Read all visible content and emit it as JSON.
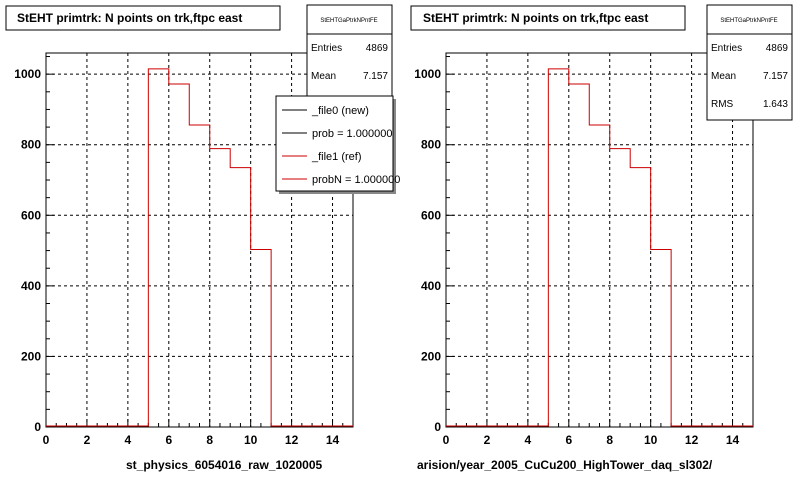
{
  "chart_data": [
    {
      "type": "histogram",
      "title": "StEHT primtrk: N points on trk,ftpc east",
      "xlabel": "st_physics_6054016_raw_1020005",
      "xlim": [
        0,
        15
      ],
      "ylim": [
        0,
        1060
      ],
      "xticks": [
        0,
        2,
        4,
        6,
        8,
        10,
        12,
        14
      ],
      "yticks": [
        0,
        200,
        400,
        600,
        800,
        1000
      ],
      "grid": true,
      "bins": [
        0,
        1,
        2,
        3,
        4,
        5,
        6,
        7,
        8,
        9,
        10,
        11,
        12,
        13,
        14,
        15
      ],
      "values": [
        0,
        0,
        0,
        0,
        0,
        1015,
        972,
        856,
        789,
        735,
        503,
        0,
        0,
        0,
        0
      ],
      "line_color": "#cc0000",
      "stats": {
        "header": "StEHTGaPtrkNPntFE",
        "rows": [
          {
            "label": "Entries",
            "value": "4869"
          },
          {
            "label": "Mean",
            "value": "7.157"
          }
        ]
      },
      "legend": [
        {
          "label": "_file0 (new)",
          "color": "#000000"
        },
        {
          "label": "prob = 1.000000",
          "color": "#000000"
        },
        {
          "label": "_file1 (ref)",
          "color": "#cc0000"
        },
        {
          "label": "probN = 1.000000",
          "color": "#cc0000"
        }
      ]
    },
    {
      "type": "histogram",
      "title": "StEHT primtrk: N points on trk,ftpc east",
      "xlabel": "arision/year_2005_CuCu200_HighTower_daq_sl302/",
      "xlim": [
        0,
        15
      ],
      "ylim": [
        0,
        1060
      ],
      "xticks": [
        0,
        2,
        4,
        6,
        8,
        10,
        12,
        14
      ],
      "yticks": [
        0,
        200,
        400,
        600,
        800,
        1000
      ],
      "grid": true,
      "bins": [
        0,
        1,
        2,
        3,
        4,
        5,
        6,
        7,
        8,
        9,
        10,
        11,
        12,
        13,
        14,
        15
      ],
      "values": [
        0,
        0,
        0,
        0,
        0,
        1015,
        972,
        856,
        789,
        735,
        503,
        0,
        0,
        0,
        0
      ],
      "line_color": "#cc0000",
      "stats": {
        "header": "StEHTGaPtrkNPntFE",
        "rows": [
          {
            "label": "Entries",
            "value": "4869"
          },
          {
            "label": "Mean",
            "value": "7.157"
          },
          {
            "label": "RMS",
            "value": "1.643"
          }
        ]
      }
    }
  ]
}
